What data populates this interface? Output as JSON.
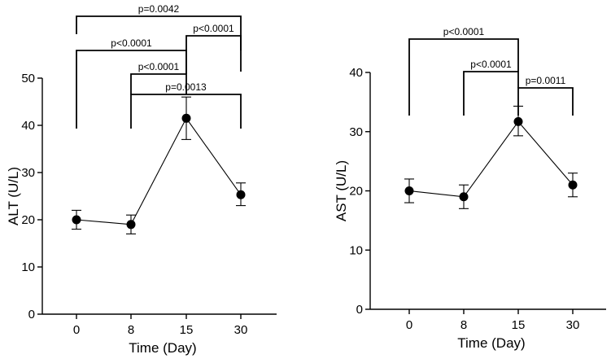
{
  "chart_data": [
    {
      "type": "line",
      "panel": "left",
      "categories": [
        "0",
        "8",
        "15",
        "30"
      ],
      "x": [
        0,
        8,
        15,
        30
      ],
      "values": [
        20,
        19,
        41.5,
        25.3
      ],
      "errors_upper": [
        22,
        21,
        46,
        27.8
      ],
      "errors_lower": [
        18,
        17,
        37,
        23
      ],
      "xlabel": "Time (Day)",
      "ylabel": "ALT (U/L)",
      "ylim": [
        0,
        50
      ],
      "yticks": [
        "0",
        "10",
        "20",
        "30",
        "40",
        "50"
      ],
      "comparisons": [
        {
          "from": 0,
          "to": 3,
          "label": "p=0.0042",
          "level": 4
        },
        {
          "from": 2,
          "to": 3,
          "label": "p<0.0001",
          "level": 3
        },
        {
          "from": 0,
          "to": 2,
          "label": "p<0.0001",
          "level": 2
        },
        {
          "from": 1,
          "to": 2,
          "label": "p<0.0001",
          "level": 1
        },
        {
          "from": 1,
          "to": 3,
          "label": "p=0.0013",
          "level": 0
        }
      ]
    },
    {
      "type": "line",
      "panel": "right",
      "categories": [
        "0",
        "8",
        "15",
        "30"
      ],
      "x": [
        0,
        8,
        15,
        30
      ],
      "values": [
        20,
        19,
        31.7,
        21
      ],
      "errors_upper": [
        22,
        21,
        34.3,
        23
      ],
      "errors_lower": [
        18,
        17,
        29.3,
        19
      ],
      "xlabel": "Time (Day)",
      "ylabel": "AST (U/L)",
      "ylim": [
        0,
        40
      ],
      "yticks": [
        "0",
        "10",
        "20",
        "30",
        "40"
      ],
      "comparisons": [
        {
          "from": 0,
          "to": 2,
          "label": "p<0.0001",
          "level": 2
        },
        {
          "from": 1,
          "to": 2,
          "label": "p<0.0001",
          "level": 1
        },
        {
          "from": 2,
          "to": 3,
          "label": "p=0.0011",
          "level": 0
        }
      ]
    }
  ]
}
